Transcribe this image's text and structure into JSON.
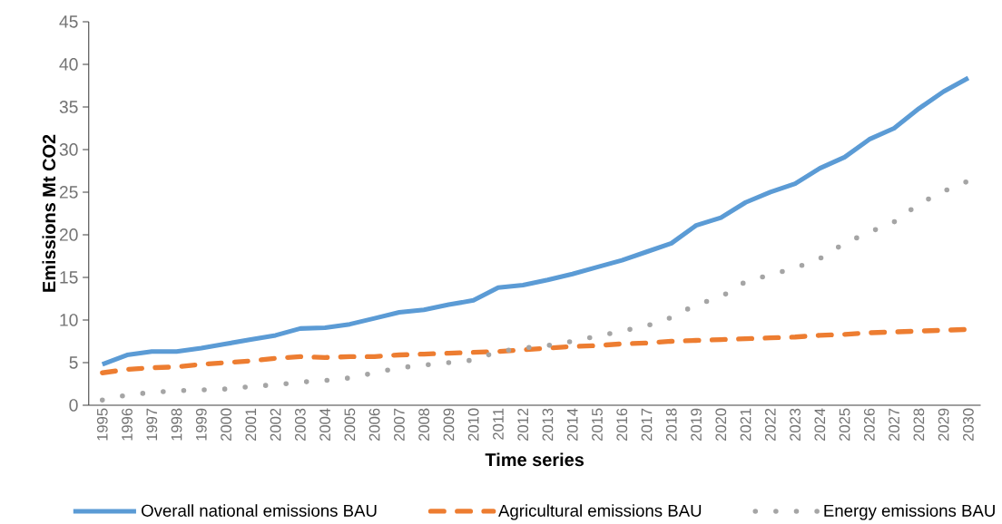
{
  "chart_data": {
    "type": "line",
    "xlabel": "Time series",
    "ylabel": "Emissions Mt CO2",
    "categories": [
      "1995",
      "1996",
      "1997",
      "1998",
      "1999",
      "2000",
      "2001",
      "2002",
      "2003",
      "2004",
      "2005",
      "2006",
      "2007",
      "2008",
      "2009",
      "2010",
      "2011",
      "2012",
      "2013",
      "2014",
      "2015",
      "2016",
      "2017",
      "2018",
      "2019",
      "2020",
      "2021",
      "2022",
      "2023",
      "2024",
      "2025",
      "2026",
      "2027",
      "2028",
      "2029",
      "2030"
    ],
    "series": [
      {
        "name": "Overall national emissions BAU",
        "color": "#5b9bd5",
        "line_style": "solid",
        "values": [
          4.8,
          5.9,
          6.3,
          6.3,
          6.7,
          7.2,
          7.7,
          8.2,
          9.0,
          9.1,
          9.5,
          10.2,
          10.9,
          11.2,
          11.8,
          12.3,
          13.8,
          14.1,
          14.7,
          15.4,
          16.2,
          17.0,
          18.0,
          19.0,
          21.1,
          22.0,
          23.8,
          25.0,
          26.0,
          27.8,
          29.1,
          31.2,
          32.5,
          34.8,
          36.8,
          38.4
        ]
      },
      {
        "name": "Agricultural emissions BAU",
        "color": "#ed7d31",
        "line_style": "dashed",
        "values": [
          3.8,
          4.2,
          4.4,
          4.5,
          4.8,
          5.0,
          5.2,
          5.5,
          5.7,
          5.6,
          5.7,
          5.7,
          5.9,
          6.0,
          6.1,
          6.2,
          6.3,
          6.5,
          6.7,
          6.9,
          7.0,
          7.2,
          7.3,
          7.5,
          7.6,
          7.7,
          7.8,
          7.9,
          8.0,
          8.2,
          8.3,
          8.5,
          8.6,
          8.7,
          8.8,
          8.9
        ]
      },
      {
        "name": "Energy emissions BAU",
        "color": "#a5a5a5",
        "line_style": "dotted",
        "values": [
          0.6,
          1.2,
          1.5,
          1.7,
          1.8,
          1.9,
          2.2,
          2.4,
          2.7,
          2.9,
          3.2,
          3.8,
          4.4,
          4.7,
          5.0,
          5.3,
          6.3,
          6.7,
          7.0,
          7.5,
          8.1,
          8.7,
          9.3,
          10.3,
          11.8,
          12.7,
          14.5,
          15.3,
          16.1,
          17.2,
          19.0,
          20.3,
          21.5,
          23.6,
          25.1,
          26.3
        ]
      }
    ],
    "ylim": [
      0,
      45
    ],
    "yticks": [
      0,
      5,
      10,
      15,
      20,
      25,
      30,
      35,
      40,
      45
    ],
    "grid": false,
    "legend": "bottom",
    "marker": "none"
  }
}
